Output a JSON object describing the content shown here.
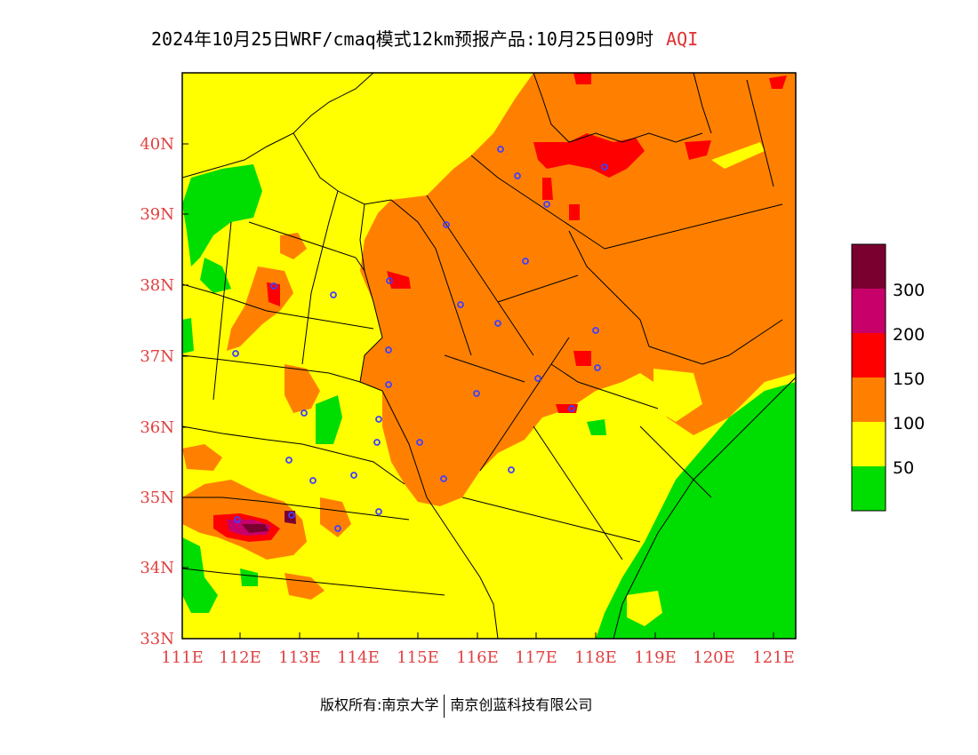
{
  "title": {
    "text": "2024年10月25日WRF/cmaq模式12km预报产品:10月25日09时",
    "product": "AQI"
  },
  "map": {
    "lon_ticks": [
      "111E",
      "112E",
      "113E",
      "114E",
      "115E",
      "116E",
      "117E",
      "118E",
      "119E",
      "120E",
      "121E"
    ],
    "lat_ticks": [
      "40N",
      "39N",
      "38N",
      "37N",
      "36N",
      "35N",
      "34N",
      "33N"
    ],
    "station_markers": 32
  },
  "legend": {
    "colors": {
      "good": "#00dd00",
      "moderate": "#ffff00",
      "usg": "#ff8000",
      "unhealthy": "#ff0000",
      "very_unhealthy": "#c8006a",
      "hazardous": "#7a0030"
    },
    "labels": [
      "300",
      "200",
      "150",
      "100",
      "50"
    ]
  },
  "footer": {
    "left": "版权所有:南京大学",
    "right": "南京创蓝科技有限公司"
  }
}
